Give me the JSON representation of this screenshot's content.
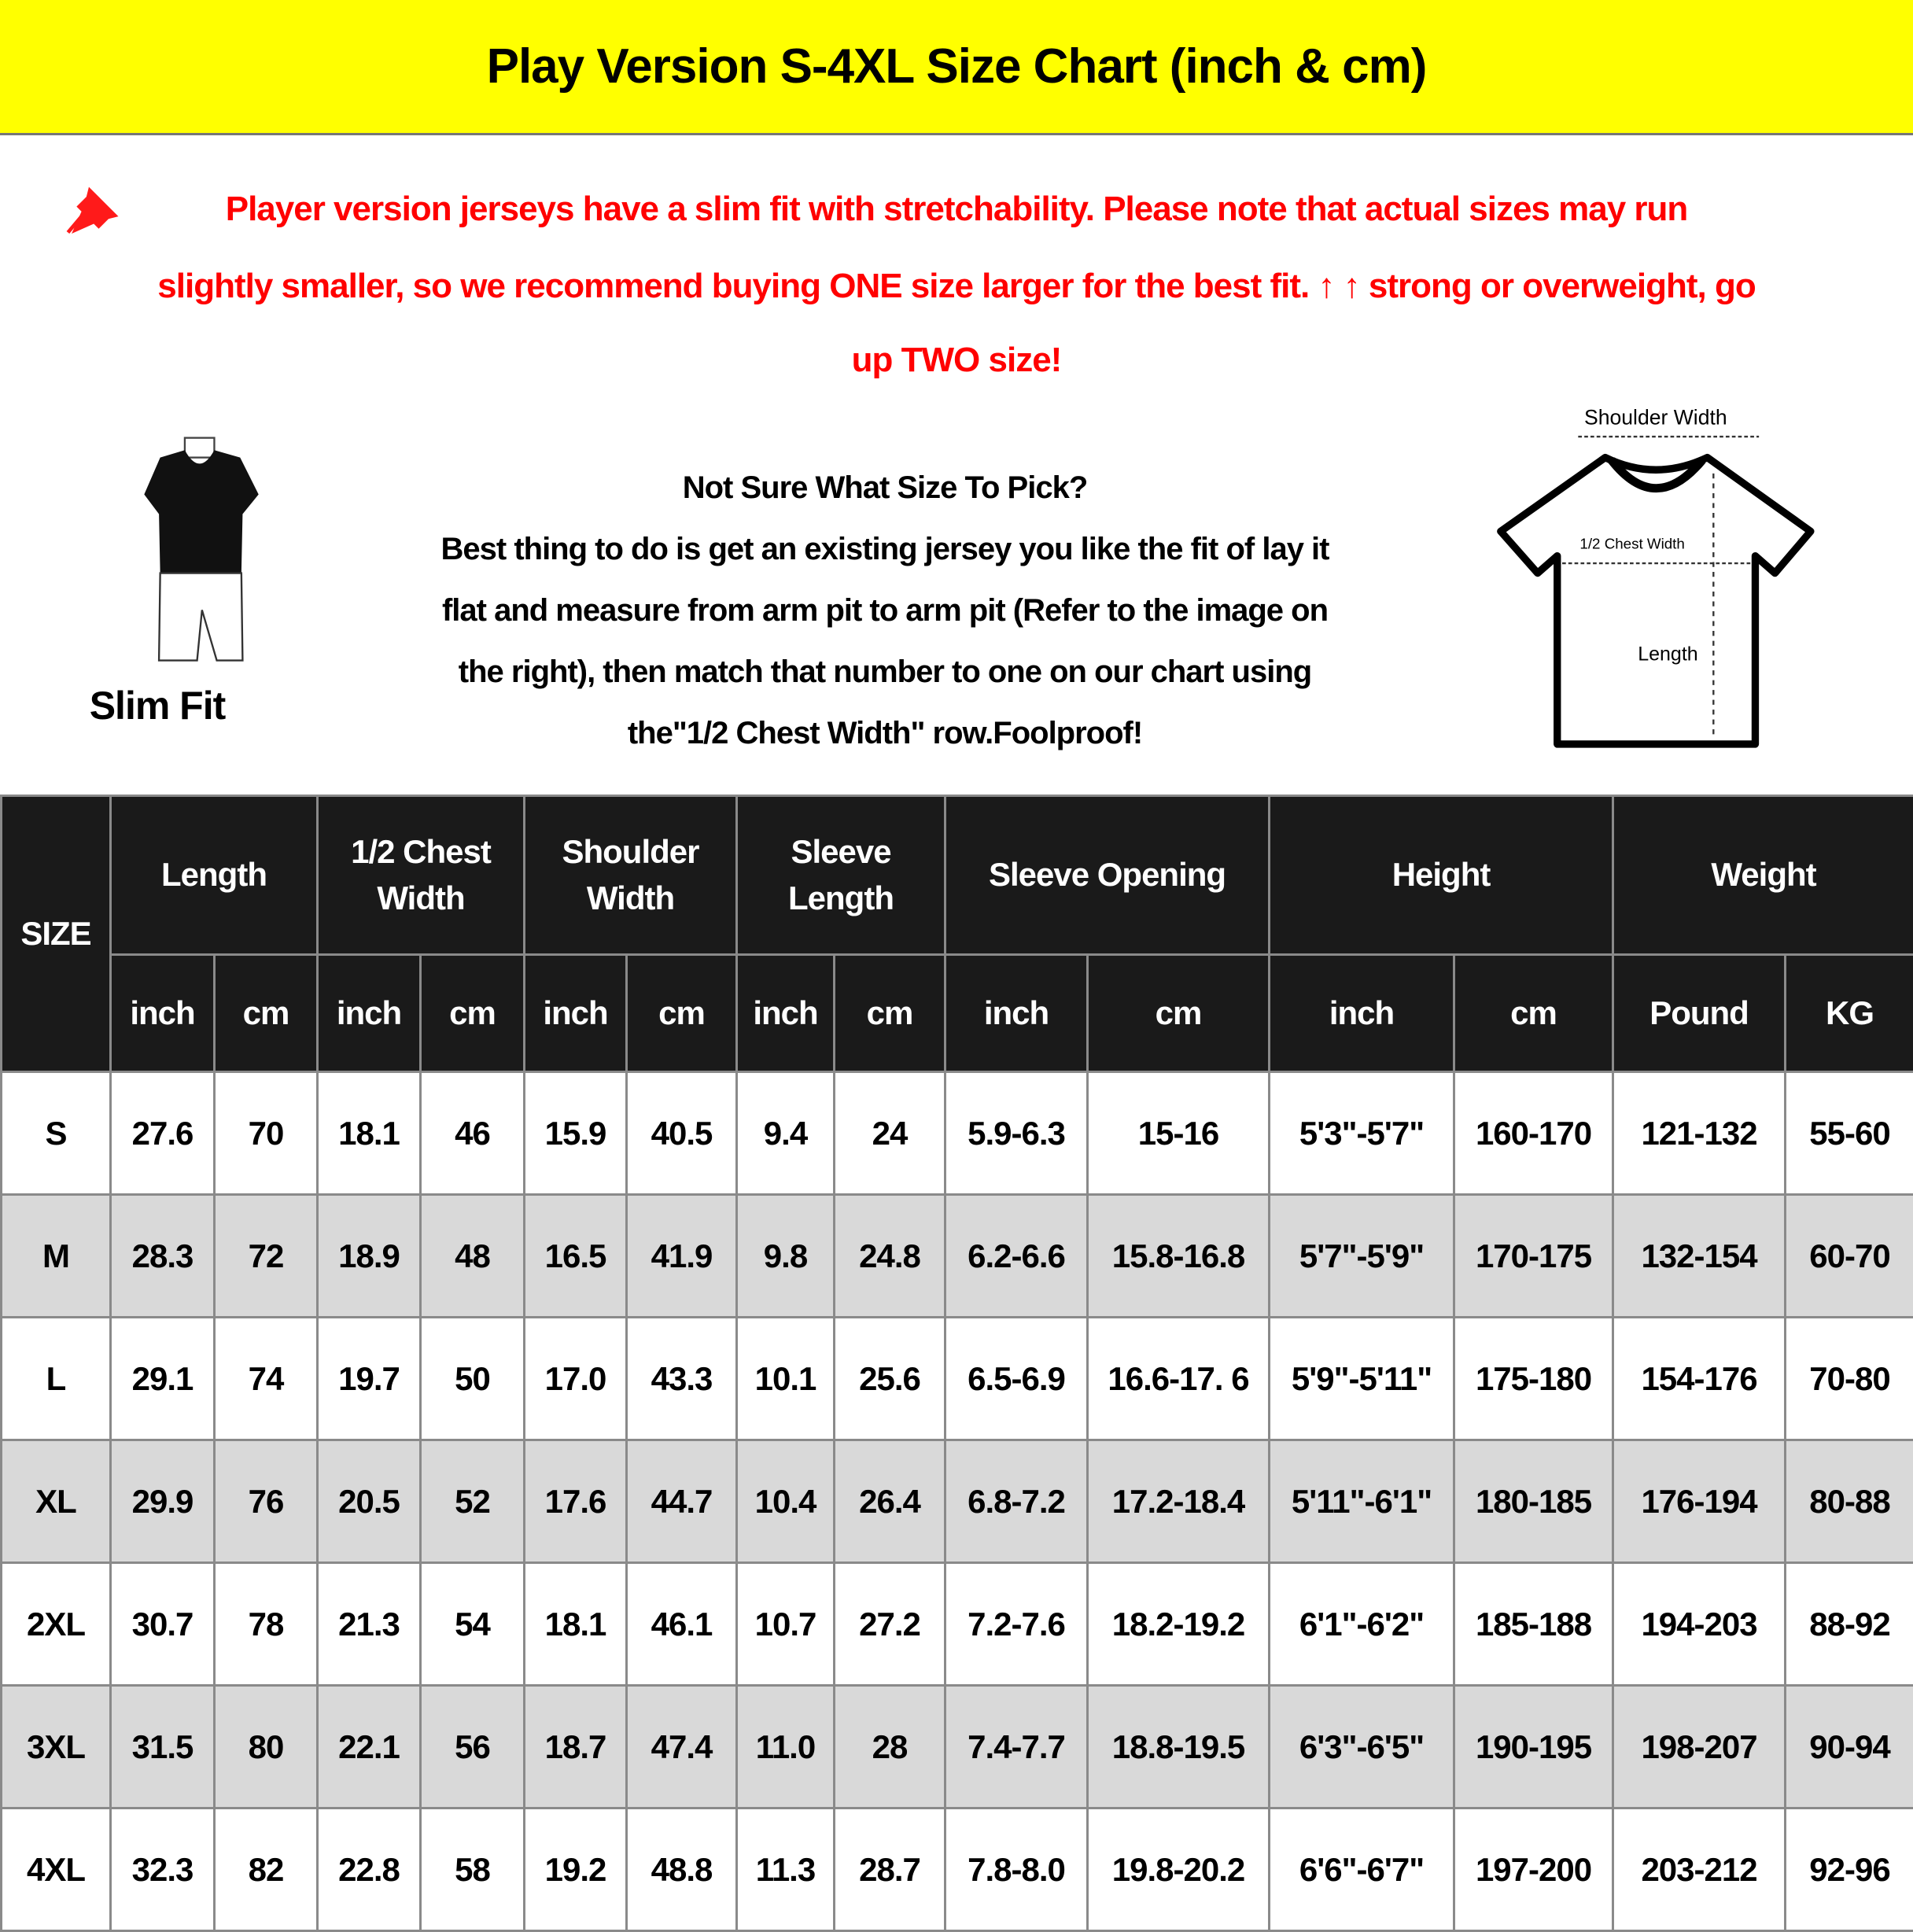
{
  "title": "Play Version S-4XL Size Chart (inch & cm)",
  "colors": {
    "title_bg": "#ffff00",
    "notice": "#ff0000",
    "header_bg": "#1a1a1a",
    "alt_row": "#d9d9d9"
  },
  "notice": {
    "icon": "pushpin-icon",
    "lines": [
      "Player version jerseys have a slim fit with stretchability. Please note that actual sizes may run",
      "slightly smaller, so we recommend buying ONE size larger for the best fit. ↑ ↑ strong or overweight, go",
      "up TWO size!"
    ]
  },
  "slim_fit": {
    "label": "Slim Fit"
  },
  "guide": {
    "lines": [
      "Not Sure What Size To Pick?",
      "Best thing to do is get an existing jersey you like the fit of lay it",
      "flat and measure from arm pit to arm pit (Refer to the image on",
      "the right), then match that number to one on our chart using",
      "the\"1/2 Chest Width\" row.Foolproof!"
    ]
  },
  "diagram": {
    "shoulder": "Shoulder Width",
    "chest": "1/2 Chest Width",
    "length": "Length"
  },
  "table": {
    "size_header": "SIZE",
    "groups": [
      "Length",
      "1/2 Chest Width",
      "Shoulder Width",
      "Sleeve Length",
      "Sleeve Opening",
      "Height",
      "Weight"
    ],
    "units": [
      "inch",
      "cm",
      "inch",
      "cm",
      "inch",
      "cm",
      "inch",
      "cm",
      "inch",
      "cm",
      "inch",
      "cm",
      "Pound",
      "KG"
    ],
    "rows": [
      [
        "S",
        "27.6",
        "70",
        "18.1",
        "46",
        "15.9",
        "40.5",
        "9.4",
        "24",
        "5.9-6.3",
        "15-16",
        "5'3\"-5'7\"",
        "160-170",
        "121-132",
        "55-60"
      ],
      [
        "M",
        "28.3",
        "72",
        "18.9",
        "48",
        "16.5",
        "41.9",
        "9.8",
        "24.8",
        "6.2-6.6",
        "15.8-16.8",
        "5'7\"-5'9\"",
        "170-175",
        "132-154",
        "60-70"
      ],
      [
        "L",
        "29.1",
        "74",
        "19.7",
        "50",
        "17.0",
        "43.3",
        "10.1",
        "25.6",
        "6.5-6.9",
        "16.6-17. 6",
        "5'9\"-5'11\"",
        "175-180",
        "154-176",
        "70-80"
      ],
      [
        "XL",
        "29.9",
        "76",
        "20.5",
        "52",
        "17.6",
        "44.7",
        "10.4",
        "26.4",
        "6.8-7.2",
        "17.2-18.4",
        "5'11\"-6'1\"",
        "180-185",
        "176-194",
        "80-88"
      ],
      [
        "2XL",
        "30.7",
        "78",
        "21.3",
        "54",
        "18.1",
        "46.1",
        "10.7",
        "27.2",
        "7.2-7.6",
        "18.2-19.2",
        "6'1\"-6'2\"",
        "185-188",
        "194-203",
        "88-92"
      ],
      [
        "3XL",
        "31.5",
        "80",
        "22.1",
        "56",
        "18.7",
        "47.4",
        "11.0",
        "28",
        "7.4-7.7",
        "18.8-19.5",
        "6'3\"-6'5\"",
        "190-195",
        "198-207",
        "90-94"
      ],
      [
        "4XL",
        "32.3",
        "82",
        "22.8",
        "58",
        "19.2",
        "48.8",
        "11.3",
        "28.7",
        "7.8-8.0",
        "19.8-20.2",
        "6'6\"-6'7\"",
        "197-200",
        "203-212",
        "92-96"
      ]
    ]
  }
}
